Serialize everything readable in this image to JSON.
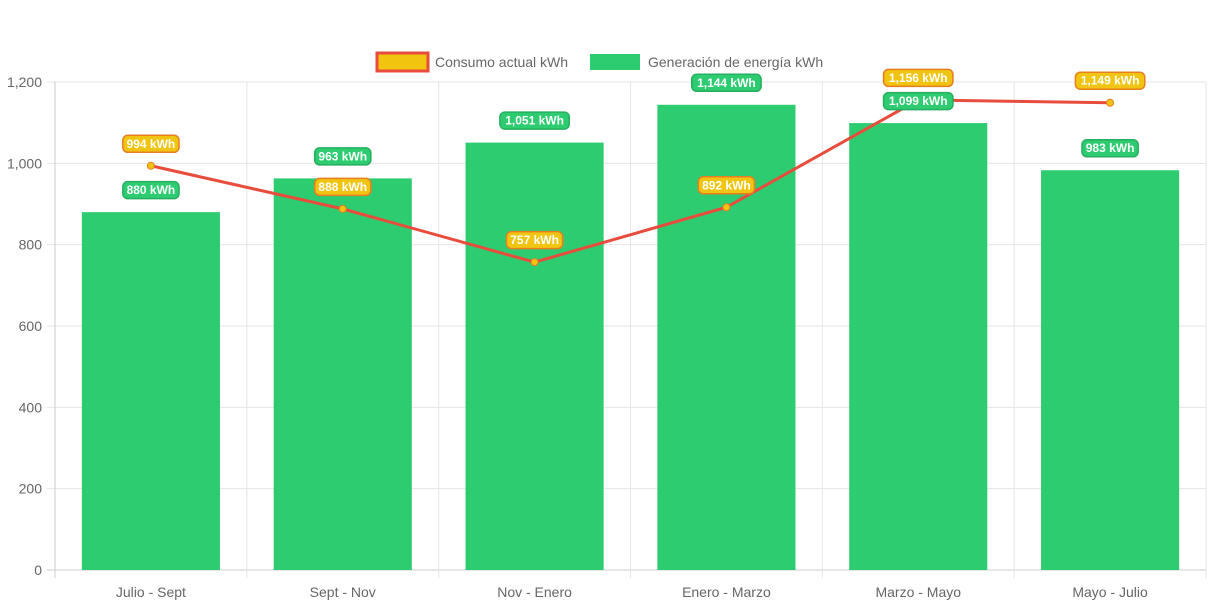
{
  "chart_data": {
    "type": "bar",
    "categories": [
      "Julio - Sept",
      "Sept - Nov",
      "Nov - Enero",
      "Enero - Marzo",
      "Marzo - Mayo",
      "Mayo - Julio"
    ],
    "series": [
      {
        "name": "Consumo actual kWh",
        "type": "line",
        "values": [
          994,
          888,
          757,
          892,
          1156,
          1149
        ],
        "labels": [
          "994 kWh",
          "888 kWh",
          "757 kWh",
          "892 kWh",
          "1,156 kWh",
          "1,149 kWh"
        ],
        "line_color": "#e74c3c",
        "point_color": "#f1c40f",
        "label_bg": "#f1c40f",
        "label_border": "#e67e22"
      },
      {
        "name": "Generación de energía kWh",
        "type": "bar",
        "values": [
          880,
          963,
          1051,
          1144,
          1099,
          983
        ],
        "labels": [
          "880 kWh",
          "963 kWh",
          "1,051 kWh",
          "1,144 kWh",
          "1,099 kWh",
          "983 kWh"
        ],
        "bar_color": "#2ecc71",
        "label_bg": "#2ecc71",
        "label_border": "#27ae60"
      }
    ],
    "yticks": [
      "0",
      "200",
      "400",
      "600",
      "800",
      "1,000",
      "1,200"
    ],
    "ytick_values": [
      0,
      200,
      400,
      600,
      800,
      1000,
      1200
    ],
    "ylim": [
      0,
      1200
    ],
    "xlabel": "",
    "ylabel": "",
    "grid": true,
    "legend_position": "top-center"
  },
  "colors": {
    "grid": "#e5e5e5",
    "axis": "#cccccc",
    "text": "#666666"
  }
}
